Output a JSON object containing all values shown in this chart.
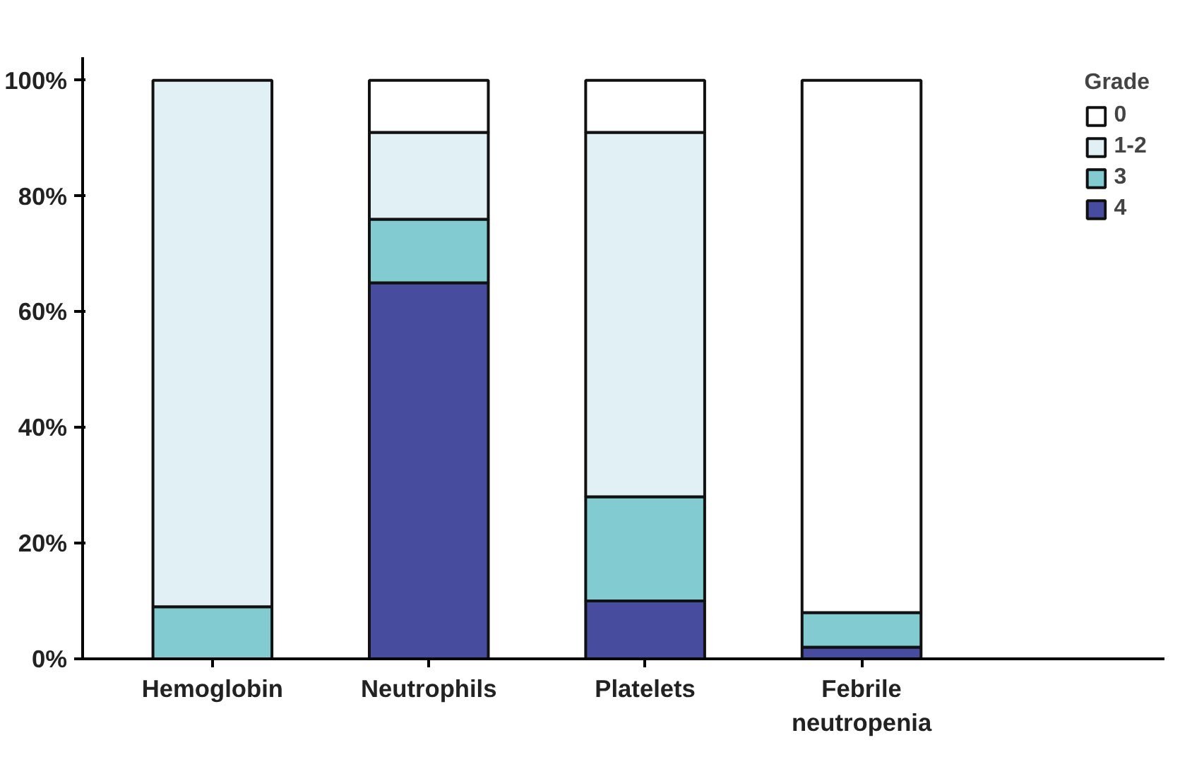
{
  "chart_data": {
    "type": "bar",
    "stacked": true,
    "categories": [
      "Hemoglobin",
      "Neutrophils",
      "Platelets",
      "Febrile neutropenia"
    ],
    "series": [
      {
        "name": "4",
        "color": "#474c9f",
        "values": [
          0,
          65,
          10,
          2
        ]
      },
      {
        "name": "3",
        "color": "#82cbd0",
        "values": [
          9,
          11,
          18,
          6
        ]
      },
      {
        "name": "1-2",
        "color": "#e0f0f4",
        "values": [
          91,
          15,
          63,
          0
        ]
      },
      {
        "name": "0",
        "color": "#ffffff",
        "values": [
          0,
          9,
          9,
          92
        ]
      }
    ],
    "legend_title": "Grade",
    "legend": "top right",
    "grid": false,
    "ylim": [
      0,
      104
    ],
    "yticks": [
      {
        "value": 0,
        "label": "0%"
      },
      {
        "value": 20,
        "label": "20%"
      },
      {
        "value": 40,
        "label": "40%"
      },
      {
        "value": 60,
        "label": "60%"
      },
      {
        "value": 80,
        "label": "80%"
      },
      {
        "value": 100,
        "label": "100%"
      }
    ]
  }
}
